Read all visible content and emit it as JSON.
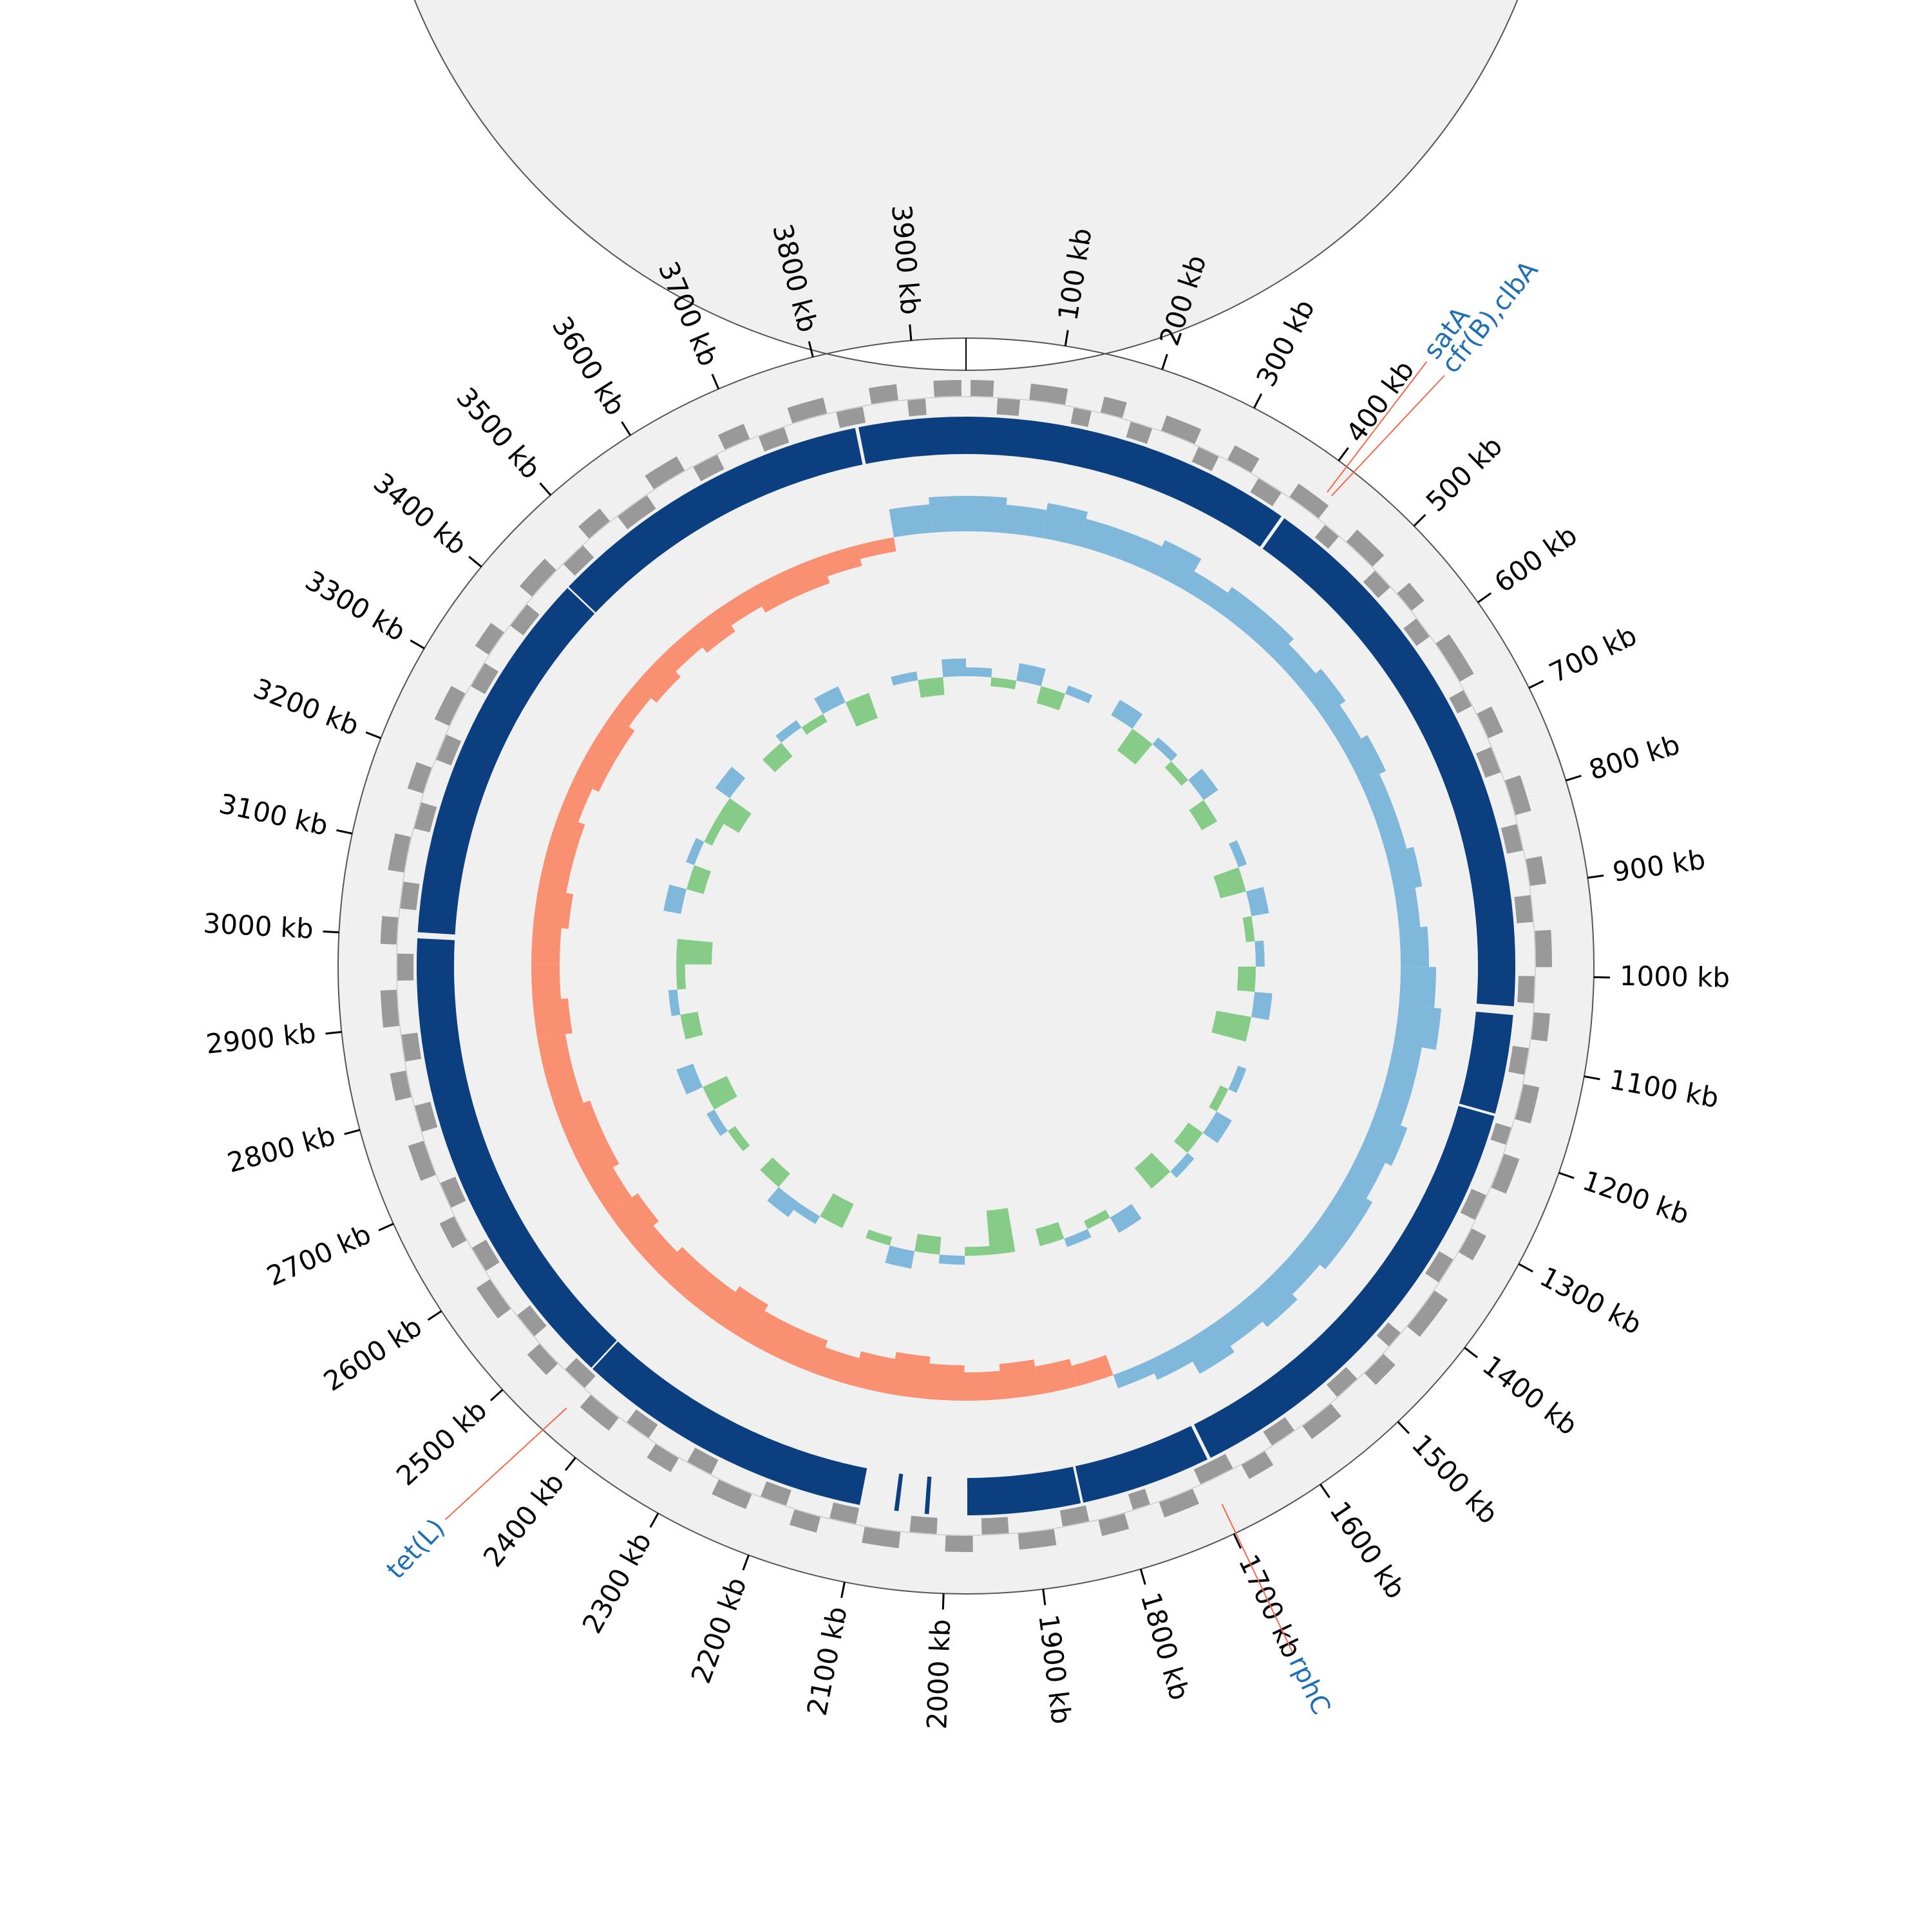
{
  "chart_data": {
    "type": "circular",
    "xlim": [
      0,
      3955
    ],
    "xticks": [
      {
        "value": 100,
        "label": "100 kb"
      },
      {
        "value": 200,
        "label": "200 kb"
      },
      {
        "value": 300,
        "label": "300 kb"
      },
      {
        "value": 400,
        "label": "400 kb"
      },
      {
        "value": 500,
        "label": "500 kb"
      },
      {
        "value": 600,
        "label": "600 kb"
      },
      {
        "value": 700,
        "label": "700 kb"
      },
      {
        "value": 800,
        "label": "800 kb"
      },
      {
        "value": 900,
        "label": "900 kb"
      },
      {
        "value": 1000,
        "label": "1000 kb"
      },
      {
        "value": 1100,
        "label": "1100 kb"
      },
      {
        "value": 1200,
        "label": "1200 kb"
      },
      {
        "value": 1300,
        "label": "1300 kb"
      },
      {
        "value": 1400,
        "label": "1400 kb"
      },
      {
        "value": 1500,
        "label": "1500 kb"
      },
      {
        "value": 1600,
        "label": "1600 kb"
      },
      {
        "value": 1700,
        "label": "1700 kb"
      },
      {
        "value": 1800,
        "label": "1800 kb"
      },
      {
        "value": 1900,
        "label": "1900 kb"
      },
      {
        "value": 2000,
        "label": "2000 kb"
      },
      {
        "value": 2100,
        "label": "2100 kb"
      },
      {
        "value": 2200,
        "label": "2200 kb"
      },
      {
        "value": 2300,
        "label": "2300 kb"
      },
      {
        "value": 2400,
        "label": "2400 kb"
      },
      {
        "value": 2500,
        "label": "2500 kb"
      },
      {
        "value": 2600,
        "label": "2600 kb"
      },
      {
        "value": 2700,
        "label": "2700 kb"
      },
      {
        "value": 2800,
        "label": "2800 kb"
      },
      {
        "value": 2900,
        "label": "2900 kb"
      },
      {
        "value": 3000,
        "label": "3000 kb"
      },
      {
        "value": 3100,
        "label": "3100 kb"
      },
      {
        "value": 3200,
        "label": "3200 kb"
      },
      {
        "value": 3300,
        "label": "3300 kb"
      },
      {
        "value": 3400,
        "label": "3400 kb"
      },
      {
        "value": 3500,
        "label": "3500 kb"
      },
      {
        "value": 3600,
        "label": "3600 kb"
      },
      {
        "value": 3700,
        "label": "3700 kb"
      },
      {
        "value": 3800,
        "label": "3800 kb"
      },
      {
        "value": 3900,
        "label": "3900 kb"
      }
    ],
    "annotations": [
      {
        "label": "satA",
        "position": 410
      },
      {
        "label": "cfr(B),clbA",
        "position": 416
      },
      {
        "label": "rphC",
        "position": 1698
      },
      {
        "label": "tet(L)",
        "position": 2440
      }
    ],
    "annotation_color": "#1f6fb4",
    "annotation_line_color": "#f4694b",
    "cds_color": "#999999",
    "cds_forward": [
      [
        5,
        30
      ],
      [
        70,
        110
      ],
      [
        150,
        175
      ],
      [
        220,
        260
      ],
      [
        300,
        330
      ],
      [
        380,
        420
      ],
      [
        460,
        500
      ],
      [
        540,
        565
      ],
      [
        610,
        660
      ],
      [
        700,
        730
      ],
      [
        780,
        820
      ],
      [
        870,
        900
      ],
      [
        950,
        990
      ],
      [
        1040,
        1070
      ],
      [
        1120,
        1160
      ],
      [
        1200,
        1240
      ],
      [
        1290,
        1320
      ],
      [
        1370,
        1420
      ],
      [
        1460,
        1490
      ],
      [
        1540,
        1580
      ],
      [
        1630,
        1660
      ],
      [
        1720,
        1760
      ],
      [
        1800,
        1830
      ],
      [
        1880,
        1920
      ],
      [
        1970,
        2000
      ],
      [
        2050,
        2090
      ],
      [
        2140,
        2170
      ],
      [
        2220,
        2260
      ],
      [
        2310,
        2340
      ],
      [
        2390,
        2430
      ],
      [
        2480,
        2510
      ],
      [
        2560,
        2600
      ],
      [
        2650,
        2680
      ],
      [
        2730,
        2770
      ],
      [
        2820,
        2850
      ],
      [
        2900,
        2940
      ],
      [
        2990,
        3020
      ],
      [
        3070,
        3110
      ],
      [
        3160,
        3190
      ],
      [
        3240,
        3280
      ],
      [
        3330,
        3360
      ],
      [
        3410,
        3450
      ],
      [
        3500,
        3530
      ],
      [
        3590,
        3630
      ],
      [
        3680,
        3710
      ],
      [
        3760,
        3800
      ],
      [
        3850,
        3880
      ],
      [
        3920,
        3950
      ]
    ],
    "cds_reverse": [
      [
        35,
        60
      ],
      [
        120,
        140
      ],
      [
        185,
        210
      ],
      [
        265,
        290
      ],
      [
        340,
        370
      ],
      [
        430,
        450
      ],
      [
        505,
        530
      ],
      [
        575,
        600
      ],
      [
        670,
        690
      ],
      [
        740,
        770
      ],
      [
        830,
        860
      ],
      [
        910,
        940
      ],
      [
        1000,
        1030
      ],
      [
        1080,
        1110
      ],
      [
        1170,
        1190
      ],
      [
        1250,
        1280
      ],
      [
        1330,
        1360
      ],
      [
        1430,
        1450
      ],
      [
        1500,
        1530
      ],
      [
        1590,
        1620
      ],
      [
        1670,
        1710
      ],
      [
        1770,
        1790
      ],
      [
        1840,
        1870
      ],
      [
        1930,
        1960
      ],
      [
        2010,
        2040
      ],
      [
        2100,
        2130
      ],
      [
        2180,
        2210
      ],
      [
        2270,
        2300
      ],
      [
        2350,
        2380
      ],
      [
        2440,
        2470
      ],
      [
        2520,
        2550
      ],
      [
        2610,
        2640
      ],
      [
        2690,
        2720
      ],
      [
        2780,
        2810
      ],
      [
        2860,
        2890
      ],
      [
        2950,
        2980
      ],
      [
        3030,
        3060
      ],
      [
        3120,
        3150
      ],
      [
        3200,
        3230
      ],
      [
        3290,
        3320
      ],
      [
        3370,
        3400
      ],
      [
        3460,
        3490
      ],
      [
        3540,
        3580
      ],
      [
        3640,
        3670
      ],
      [
        3720,
        3750
      ],
      [
        3810,
        3840
      ],
      [
        3890,
        3910
      ]
    ],
    "contig_color": "#0b3f80",
    "contigs": [
      [
        0,
        385
      ],
      [
        389,
        1035
      ],
      [
        1045,
        1160
      ],
      [
        1163,
        1687
      ],
      [
        1691,
        1842
      ],
      [
        1845,
        1976
      ],
      [
        2020,
        2025
      ],
      [
        2055,
        2060
      ],
      [
        2100,
        2448
      ],
      [
        2450,
        2998
      ],
      [
        3005,
        3444
      ],
      [
        3446,
        3827
      ],
      [
        3831,
        3955
      ]
    ],
    "x": [
      0,
      55,
      110,
      165,
      220,
      275,
      330,
      385,
      440,
      495,
      550,
      605,
      660,
      715,
      770,
      825,
      880,
      935,
      990,
      1045,
      1100,
      1155,
      1210,
      1265,
      1320,
      1375,
      1430,
      1485,
      1540,
      1595,
      1650,
      1705,
      1760,
      1815,
      1870,
      1925,
      1980,
      2035,
      2090,
      2145,
      2200,
      2255,
      2310,
      2365,
      2420,
      2475,
      2530,
      2585,
      2640,
      2695,
      2750,
      2805,
      2860,
      2915,
      2970,
      3025,
      3080,
      3135,
      3190,
      3245,
      3300,
      3355,
      3410,
      3465,
      3520,
      3575,
      3630,
      3685,
      3740,
      3795,
      3850,
      3905
    ],
    "gc_skew": {
      "ylim": [
        -0.1,
        0.1
      ],
      "positive_color": "#6baed6",
      "negative_color": "#fb7f5c",
      "values": [
        0.05,
        0.04,
        0.05,
        0.04,
        0.04,
        0.05,
        0.03,
        0.04,
        0.04,
        0.03,
        0.04,
        0.03,
        0.04,
        0.03,
        0.03,
        0.04,
        0.03,
        0.04,
        0.05,
        0.06,
        0.04,
        0.04,
        0.05,
        0.04,
        0.05,
        0.05,
        0.04,
        0.05,
        0.04,
        0.05,
        0.03,
        0.02,
        -0.03,
        -0.04,
        -0.05,
        -0.04,
        -0.05,
        -0.06,
        -0.05,
        -0.04,
        -0.05,
        -0.05,
        -0.06,
        -0.05,
        -0.05,
        -0.04,
        -0.05,
        -0.04,
        -0.05,
        -0.05,
        -0.04,
        -0.04,
        -0.05,
        -0.04,
        -0.04,
        -0.05,
        -0.04,
        -0.04,
        -0.03,
        -0.04,
        -0.04,
        -0.03,
        -0.04,
        -0.03,
        -0.04,
        -0.03,
        -0.04,
        -0.04,
        -0.03,
        -0.02,
        0.04,
        0.05
      ]
    },
    "gc_content": {
      "ylim": [
        28,
        44
      ],
      "positive_color": "#6baed6",
      "negative_color": "#74c476",
      "values": [
        37,
        35,
        38,
        34,
        37,
        36,
        38,
        33,
        37,
        35,
        38,
        34,
        36,
        37,
        33,
        38,
        35,
        37,
        34,
        38,
        32,
        36,
        37,
        35,
        38,
        34,
        37,
        33,
        36,
        38,
        35,
        37,
        34,
        36,
        31,
        35,
        37,
        34,
        38,
        35,
        36,
        33,
        37,
        38,
        34,
        36,
        35,
        37,
        33,
        38,
        36,
        34,
        37,
        35,
        32,
        36,
        38,
        34,
        37,
        35,
        33,
        38,
        36,
        34,
        37,
        35,
        38,
        33,
        36,
        37,
        34,
        38
      ]
    }
  }
}
